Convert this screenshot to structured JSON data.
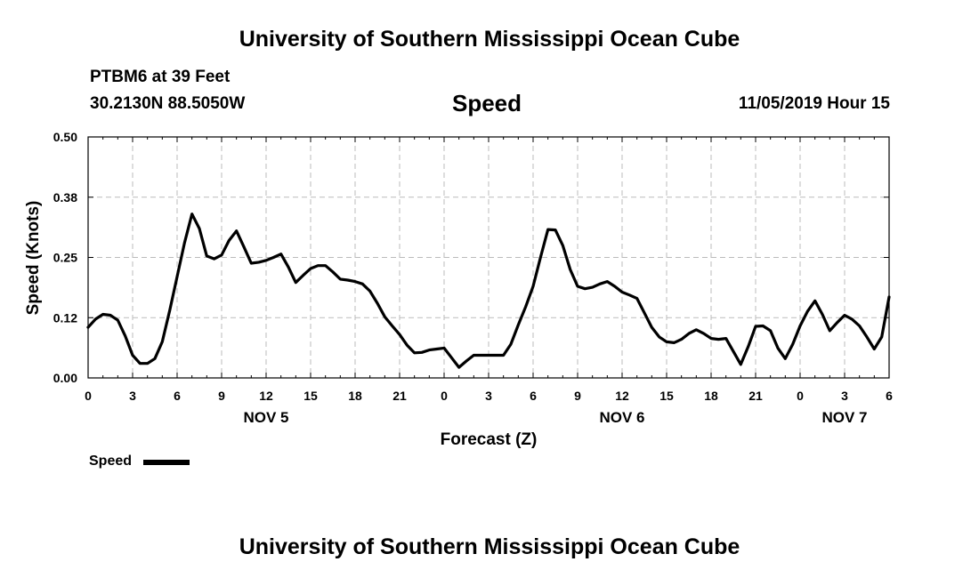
{
  "header": {
    "title_top": "University of Southern Mississippi Ocean Cube",
    "title_bottom": "University of Southern Mississippi Ocean Cube",
    "station": "PTBM6 at 39 Feet",
    "coords": "30.2130N 88.5050W",
    "variable": "Speed",
    "timestamp": "11/05/2019 Hour 15"
  },
  "legend": {
    "label": "Speed"
  },
  "chart_data": {
    "type": "line",
    "title": "Speed",
    "xlabel": "Forecast (Z)",
    "ylabel": "Speed (Knots)",
    "ylim": [
      0,
      0.5
    ],
    "xlim": [
      0,
      54
    ],
    "y_ticks": [
      "0.00",
      "0.12",
      "0.25",
      "0.38",
      "0.50"
    ],
    "y_tick_values": [
      0,
      0.125,
      0.25,
      0.375,
      0.5
    ],
    "x_tick_values": [
      0,
      3,
      6,
      9,
      12,
      15,
      18,
      21,
      24,
      27,
      30,
      33,
      36,
      39,
      42,
      45,
      48,
      51,
      54
    ],
    "x_ticks": [
      "0",
      "3",
      "6",
      "9",
      "12",
      "15",
      "18",
      "21",
      "0",
      "3",
      "6",
      "9",
      "12",
      "15",
      "18",
      "21",
      "0",
      "3",
      "6"
    ],
    "day_labels": [
      {
        "label": "NOV 5",
        "x": 12
      },
      {
        "label": "NOV 6",
        "x": 36
      },
      {
        "label": "NOV 7",
        "x": 51
      }
    ],
    "grid": true,
    "series": [
      {
        "name": "Speed",
        "color": "#000000",
        "x": [
          0,
          0.5,
          1,
          1.5,
          2,
          2.5,
          3,
          3.5,
          4,
          4.5,
          5,
          5.5,
          6,
          6.5,
          7,
          7.5,
          8,
          8.5,
          9,
          9.5,
          10,
          10.5,
          11,
          11.5,
          12,
          12.5,
          13,
          13.5,
          14,
          14.5,
          15,
          15.5,
          16,
          16.5,
          17,
          17.5,
          18,
          18.5,
          19,
          19.5,
          20,
          20.5,
          21,
          21.5,
          22,
          22.5,
          23,
          23.5,
          24,
          24.5,
          25,
          25.5,
          26,
          26.5,
          27,
          27.5,
          28,
          28.5,
          29,
          29.5,
          30,
          30.5,
          31,
          31.5,
          32,
          32.5,
          33,
          33.5,
          34,
          34.5,
          35,
          35.5,
          36,
          36.5,
          37,
          37.5,
          38,
          38.5,
          39,
          39.5,
          40,
          40.5,
          41,
          41.5,
          42,
          42.5,
          43,
          43.5,
          44,
          44.5,
          45,
          45.5,
          46,
          46.5,
          47,
          47.5,
          48,
          48.5,
          49,
          49.5,
          50,
          50.5,
          51,
          51.5,
          52,
          52.5,
          53,
          53.5,
          54
        ],
        "values": [
          0.105,
          0.122,
          0.132,
          0.13,
          0.12,
          0.087,
          0.047,
          0.03,
          0.03,
          0.04,
          0.075,
          0.14,
          0.21,
          0.28,
          0.34,
          0.31,
          0.253,
          0.247,
          0.255,
          0.285,
          0.305,
          0.272,
          0.238,
          0.24,
          0.244,
          0.25,
          0.257,
          0.23,
          0.198,
          0.213,
          0.227,
          0.233,
          0.233,
          0.22,
          0.205,
          0.203,
          0.2,
          0.195,
          0.18,
          0.155,
          0.127,
          0.108,
          0.09,
          0.068,
          0.052,
          0.053,
          0.058,
          0.06,
          0.062,
          0.042,
          0.022,
          0.035,
          0.047,
          0.047,
          0.047,
          0.047,
          0.047,
          0.07,
          0.11,
          0.148,
          0.19,
          0.25,
          0.308,
          0.307,
          0.275,
          0.225,
          0.19,
          0.185,
          0.188,
          0.195,
          0.2,
          0.19,
          0.178,
          0.172,
          0.165,
          0.135,
          0.105,
          0.085,
          0.075,
          0.073,
          0.08,
          0.092,
          0.1,
          0.092,
          0.082,
          0.08,
          0.082,
          0.055,
          0.028,
          0.065,
          0.107,
          0.108,
          0.098,
          0.062,
          0.04,
          0.07,
          0.108,
          0.138,
          0.16,
          0.132,
          0.098,
          0.115,
          0.13,
          0.122,
          0.108,
          0.085,
          0.06,
          0.085,
          0.168
        ]
      }
    ]
  }
}
